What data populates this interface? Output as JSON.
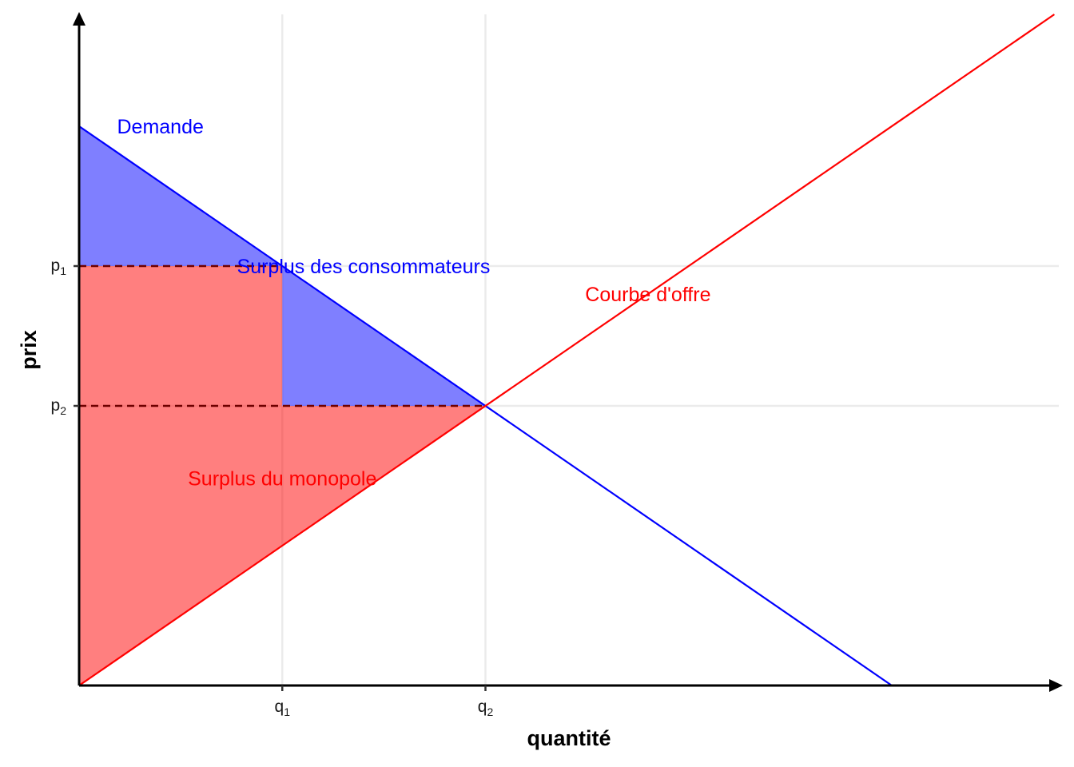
{
  "chart_data": {
    "type": "line",
    "xlabel": "quantité",
    "ylabel": "prix",
    "xlim": [
      0,
      12
    ],
    "ylim": [
      0,
      12
    ],
    "grid": "x and y at ticks",
    "x_ticks": [
      {
        "value": 2.5,
        "base": "q",
        "sub": "1"
      },
      {
        "value": 5,
        "base": "q",
        "sub": "2"
      }
    ],
    "y_ticks": [
      {
        "value": 9,
        "base": "p",
        "sub": "1"
      },
      {
        "value": 6,
        "base": "p",
        "sub": "2"
      }
    ],
    "series": [
      {
        "name": "Demande",
        "color": "#0000ff",
        "x": [
          0,
          10
        ],
        "y": [
          12,
          0
        ]
      },
      {
        "name": "Courbe d'offre",
        "color": "#ff0000",
        "x": [
          0,
          12
        ],
        "y": [
          0,
          14.4
        ]
      }
    ],
    "shaded_areas": [
      {
        "name": "Surplus des consommateurs",
        "color": "#0000ff",
        "opacity": 0.5,
        "polygons": [
          {
            "x": [
              0,
              0,
              2.5
            ],
            "y": [
              12,
              9,
              9
            ]
          },
          {
            "x": [
              2.5,
              2.5,
              5
            ],
            "y": [
              9,
              6,
              6
            ]
          }
        ]
      },
      {
        "name": "Surplus du monopole",
        "color": "#ff0000",
        "opacity": 0.5,
        "polygons": [
          {
            "x": [
              0,
              0,
              2.5,
              2.5,
              5
            ],
            "y": [
              0,
              9,
              9,
              6,
              6
            ]
          }
        ]
      }
    ],
    "dashed_lines": [
      {
        "x": [
          0,
          2.5
        ],
        "y": [
          9,
          9
        ]
      },
      {
        "x": [
          0,
          5
        ],
        "y": [
          6,
          6
        ]
      }
    ],
    "annotations": [
      {
        "text": "Demande",
        "color": "#0000ff",
        "x": 1.0,
        "y": 12
      },
      {
        "text": "Surplus des consommateurs",
        "color": "#0000ff",
        "x": 3.5,
        "y": 9
      },
      {
        "text": "Courbe d'offre",
        "color": "#ff0000",
        "x": 7.0,
        "y": 8.4
      },
      {
        "text": "Surplus du monopole",
        "color": "#ff0000",
        "x": 2.5,
        "y": 4.45
      }
    ]
  }
}
